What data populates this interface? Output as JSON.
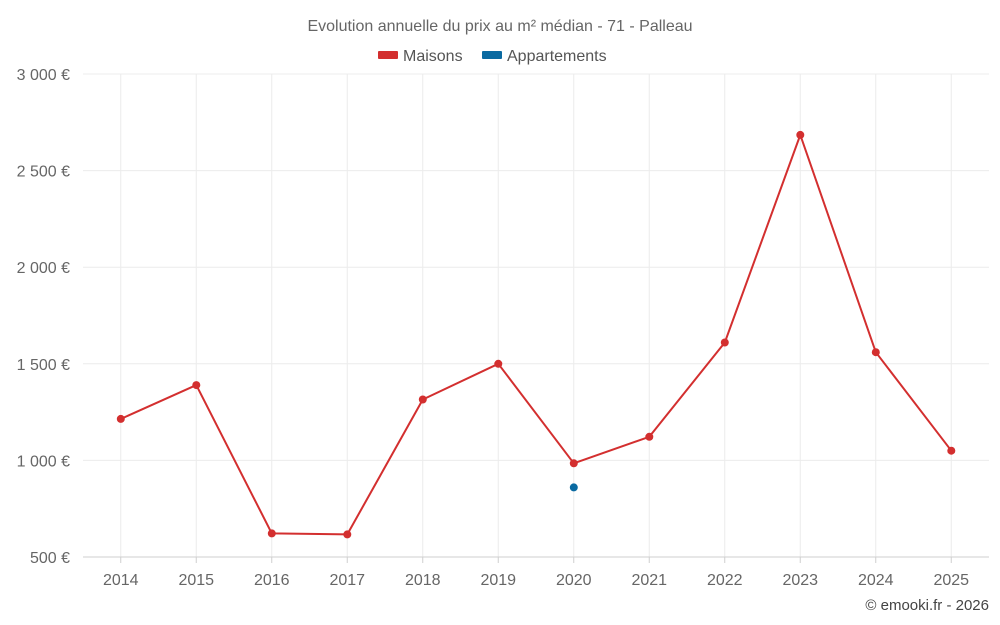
{
  "chart_data": {
    "type": "line",
    "title": "Evolution annuelle du prix au m² médian - 71 - Palleau",
    "categories": [
      "2014",
      "2015",
      "2016",
      "2017",
      "2018",
      "2019",
      "2020",
      "2021",
      "2022",
      "2023",
      "2024",
      "2025"
    ],
    "series": [
      {
        "name": "Maisons",
        "color": "#d32f2f",
        "values": [
          1215,
          1390,
          622,
          617,
          1315,
          1500,
          985,
          1122,
          1610,
          2685,
          1560,
          1050
        ]
      },
      {
        "name": "Appartements",
        "color": "#0a6aa1",
        "values": [
          null,
          null,
          null,
          null,
          null,
          null,
          860,
          null,
          null,
          null,
          null,
          null
        ]
      }
    ],
    "ylim": [
      500,
      3000
    ],
    "yticks": [
      500,
      1000,
      1500,
      2000,
      2500,
      3000
    ],
    "ytick_labels": [
      "500 €",
      "1 000 €",
      "1 500 €",
      "2 000 €",
      "2 500 €",
      "3 000 €"
    ],
    "grid": true,
    "legend_position": "top-center",
    "xlabel": "",
    "ylabel": ""
  },
  "credit": "© emooki.fr - 2026"
}
